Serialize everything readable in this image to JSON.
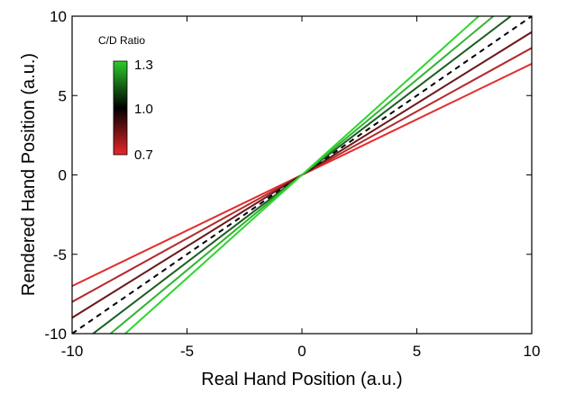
{
  "chart_data": {
    "type": "line",
    "xlabel": "Real Hand Position (a.u.)",
    "ylabel": "Rendered Hand Position (a.u.)",
    "xlim": [
      -10,
      10
    ],
    "ylim": [
      -10,
      10
    ],
    "xticks": [
      "-10",
      "-5",
      "0",
      "5",
      "10"
    ],
    "yticks": [
      "-10",
      "-5",
      "0",
      "5",
      "10"
    ],
    "grid": false,
    "colorbar": {
      "title": "C/D Ratio",
      "range": [
        0.7,
        1.3
      ],
      "labels": [
        "1.3",
        "1.0",
        "0.7"
      ],
      "colors": {
        "low": "#e8262a",
        "mid": "#000000",
        "high": "#2dcc2d"
      }
    },
    "series": [
      {
        "ratio": 0.7,
        "color": "#e32c2c",
        "dashed": false,
        "x": [
          -10,
          10
        ],
        "y": [
          -7,
          7
        ]
      },
      {
        "ratio": 0.8,
        "color": "#b42a2e",
        "dashed": false,
        "x": [
          -10,
          10
        ],
        "y": [
          -8,
          8
        ]
      },
      {
        "ratio": 0.9,
        "color": "#6a1a1d",
        "dashed": false,
        "x": [
          -10,
          10
        ],
        "y": [
          -9,
          9
        ]
      },
      {
        "ratio": 1.0,
        "color": "#000000",
        "dashed": true,
        "x": [
          -10,
          10
        ],
        "y": [
          -10,
          10
        ]
      },
      {
        "ratio": 1.1,
        "color": "#1b5e20",
        "dashed": false,
        "x": [
          -9.09,
          9.09
        ],
        "y": [
          -10,
          10
        ]
      },
      {
        "ratio": 1.2,
        "color": "#33b233",
        "dashed": false,
        "x": [
          -8.33,
          8.33
        ],
        "y": [
          -10,
          10
        ]
      },
      {
        "ratio": 1.3,
        "color": "#2fd62f",
        "dashed": false,
        "x": [
          -7.69,
          7.69
        ],
        "y": [
          -10,
          10
        ]
      }
    ]
  }
}
